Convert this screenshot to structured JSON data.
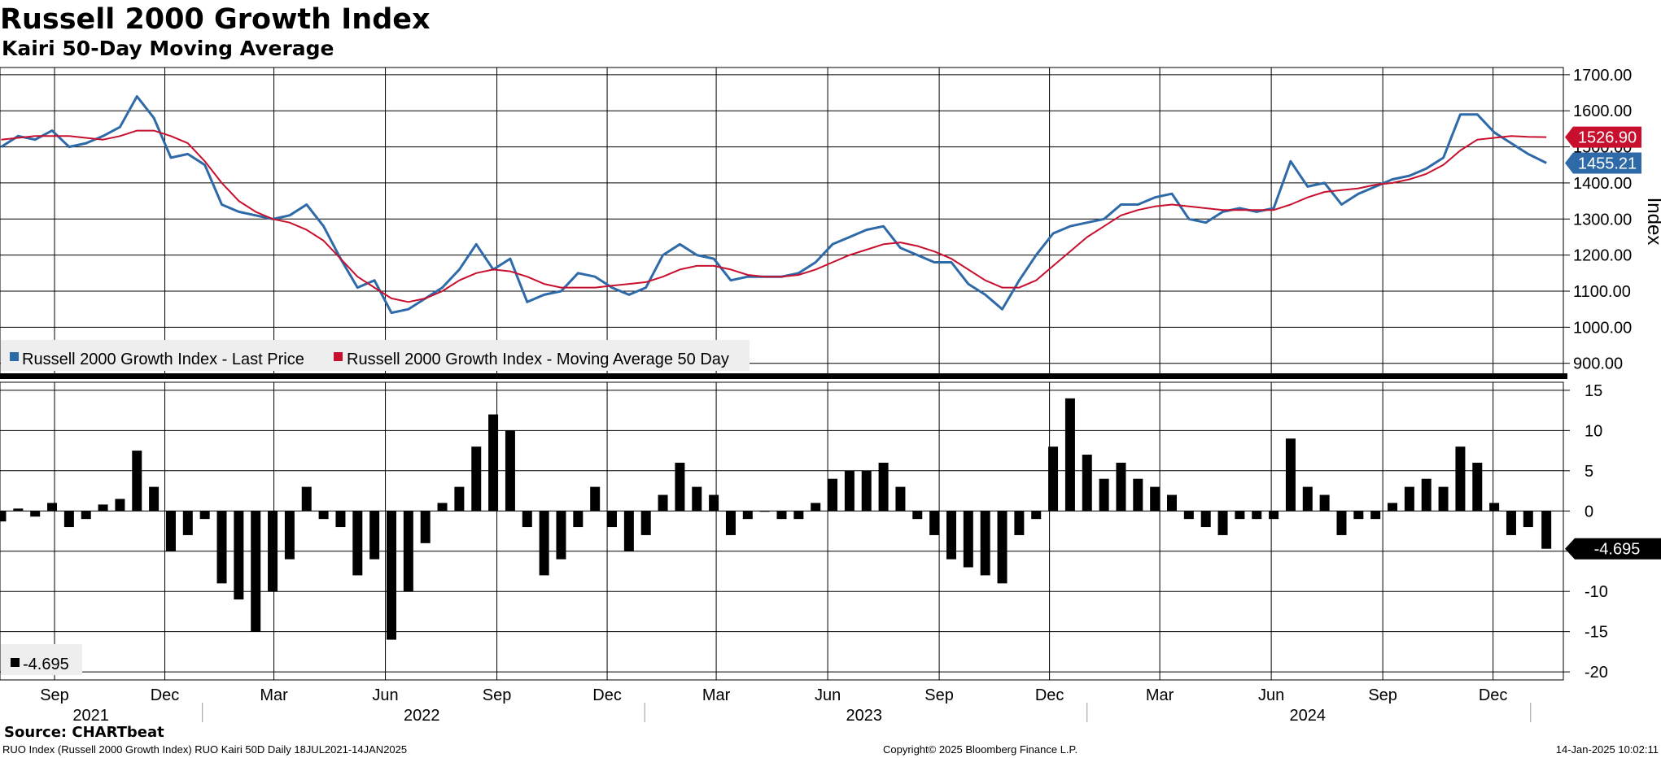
{
  "title": "Russell 2000 Growth Index",
  "subtitle": "Kairi 50-Day Moving Average",
  "source": "Source: CHARTbeat",
  "footer": {
    "left": "RUO Index (Russell 2000 Growth Index) RUO Kairi 50D  Daily 18JUL2021-14JAN2025",
    "center": "Copyright© 2025 Bloomberg Finance L.P.",
    "right": "14-Jan-2025 10:02:11"
  },
  "colors": {
    "price": "#2e6aa8",
    "ma": "#c8102e",
    "kairi": "#000000",
    "grid": "#000000"
  },
  "chart_data": [
    {
      "type": "line",
      "ylabel": "Index",
      "ylim": [
        870,
        1720
      ],
      "yticks": [
        "1700.00",
        "1600.00",
        "1500.00",
        "1400.00",
        "1300.00",
        "1200.00",
        "1100.00",
        "1000.00",
        "900.00"
      ],
      "yticks_values": [
        1700,
        1600,
        1500,
        1400,
        1300,
        1200,
        1100,
        1000,
        900
      ],
      "grid": true,
      "legend": [
        "Russell 2000 Growth Index - Last Price",
        "Russell 2000 Growth Index - Moving Average 50 Day"
      ],
      "legend_position": "bottom-left",
      "last_values": {
        "price": "1455.21",
        "ma": "1526.90"
      },
      "x": [
        "2021-07-19",
        "2021-08-02",
        "2021-08-16",
        "2021-08-30",
        "2021-09-13",
        "2021-09-27",
        "2021-10-11",
        "2021-10-25",
        "2021-11-08",
        "2021-11-22",
        "2021-12-06",
        "2021-12-20",
        "2022-01-03",
        "2022-01-17",
        "2022-01-31",
        "2022-02-14",
        "2022-02-28",
        "2022-03-14",
        "2022-03-28",
        "2022-04-11",
        "2022-04-25",
        "2022-05-09",
        "2022-05-23",
        "2022-06-06",
        "2022-06-20",
        "2022-07-04",
        "2022-07-18",
        "2022-08-01",
        "2022-08-15",
        "2022-08-29",
        "2022-09-12",
        "2022-09-26",
        "2022-10-10",
        "2022-10-24",
        "2022-11-07",
        "2022-11-21",
        "2022-12-05",
        "2022-12-19",
        "2023-01-02",
        "2023-01-16",
        "2023-01-30",
        "2023-02-13",
        "2023-02-27",
        "2023-03-13",
        "2023-03-27",
        "2023-04-10",
        "2023-04-24",
        "2023-05-08",
        "2023-05-22",
        "2023-06-05",
        "2023-06-19",
        "2023-07-03",
        "2023-07-17",
        "2023-07-31",
        "2023-08-14",
        "2023-08-28",
        "2023-09-11",
        "2023-09-25",
        "2023-10-09",
        "2023-10-23",
        "2023-11-06",
        "2023-11-20",
        "2023-12-04",
        "2023-12-18",
        "2024-01-01",
        "2024-01-15",
        "2024-01-29",
        "2024-02-12",
        "2024-02-26",
        "2024-03-11",
        "2024-03-25",
        "2024-04-08",
        "2024-04-22",
        "2024-05-06",
        "2024-05-20",
        "2024-06-03",
        "2024-06-17",
        "2024-07-01",
        "2024-07-15",
        "2024-07-29",
        "2024-08-12",
        "2024-08-26",
        "2024-09-09",
        "2024-09-23",
        "2024-10-07",
        "2024-10-21",
        "2024-11-04",
        "2024-11-18",
        "2024-12-02",
        "2024-12-16",
        "2024-12-30",
        "2025-01-14"
      ],
      "series": [
        {
          "name": "Russell 2000 Growth Index - Last Price",
          "values": [
            1500,
            1530,
            1520,
            1545,
            1500,
            1510,
            1530,
            1555,
            1640,
            1580,
            1470,
            1480,
            1450,
            1340,
            1320,
            1310,
            1300,
            1310,
            1340,
            1280,
            1190,
            1110,
            1130,
            1040,
            1050,
            1080,
            1110,
            1160,
            1230,
            1160,
            1190,
            1070,
            1090,
            1100,
            1150,
            1140,
            1110,
            1090,
            1110,
            1200,
            1230,
            1200,
            1190,
            1130,
            1140,
            1140,
            1140,
            1150,
            1180,
            1230,
            1250,
            1270,
            1280,
            1220,
            1200,
            1180,
            1180,
            1120,
            1090,
            1050,
            1130,
            1200,
            1260,
            1280,
            1290,
            1300,
            1340,
            1340,
            1360,
            1370,
            1300,
            1290,
            1320,
            1330,
            1320,
            1330,
            1460,
            1390,
            1400,
            1340,
            1370,
            1390,
            1410,
            1420,
            1440,
            1470,
            1590,
            1590,
            1540,
            1510,
            1480,
            1455.21
          ]
        },
        {
          "name": "Russell 2000 Growth Index - Moving Average 50 Day",
          "values": [
            1520,
            1525,
            1530,
            1530,
            1530,
            1525,
            1520,
            1530,
            1545,
            1545,
            1530,
            1510,
            1460,
            1400,
            1350,
            1320,
            1300,
            1290,
            1270,
            1240,
            1190,
            1140,
            1110,
            1080,
            1070,
            1080,
            1100,
            1130,
            1150,
            1160,
            1155,
            1140,
            1120,
            1110,
            1110,
            1110,
            1115,
            1120,
            1125,
            1140,
            1160,
            1170,
            1170,
            1160,
            1145,
            1140,
            1140,
            1145,
            1160,
            1180,
            1200,
            1215,
            1230,
            1235,
            1225,
            1210,
            1190,
            1160,
            1130,
            1110,
            1110,
            1130,
            1170,
            1210,
            1250,
            1280,
            1310,
            1325,
            1335,
            1340,
            1335,
            1330,
            1325,
            1325,
            1325,
            1325,
            1340,
            1360,
            1375,
            1380,
            1385,
            1395,
            1400,
            1410,
            1425,
            1450,
            1490,
            1520,
            1525,
            1530,
            1528,
            1526.9
          ]
        }
      ]
    },
    {
      "type": "bar",
      "name": "-4.695",
      "ylim": [
        -21,
        16
      ],
      "yticks": [
        "15",
        "10",
        "5",
        "0",
        "-5",
        "-10",
        "-15",
        "-20"
      ],
      "yticks_values": [
        15,
        10,
        5,
        0,
        -5,
        -10,
        -15,
        -20
      ],
      "grid": true,
      "legend": [
        "-4.695"
      ],
      "legend_position": "bottom-left",
      "last_value": "-4.695",
      "x": [
        "2021-07-19",
        "2021-08-02",
        "2021-08-16",
        "2021-08-30",
        "2021-09-13",
        "2021-09-27",
        "2021-10-11",
        "2021-10-25",
        "2021-11-08",
        "2021-11-22",
        "2021-12-06",
        "2021-12-20",
        "2022-01-03",
        "2022-01-17",
        "2022-01-31",
        "2022-02-14",
        "2022-02-28",
        "2022-03-14",
        "2022-03-28",
        "2022-04-11",
        "2022-04-25",
        "2022-05-09",
        "2022-05-23",
        "2022-06-06",
        "2022-06-20",
        "2022-07-04",
        "2022-07-18",
        "2022-08-01",
        "2022-08-15",
        "2022-08-29",
        "2022-09-12",
        "2022-09-26",
        "2022-10-10",
        "2022-10-24",
        "2022-11-07",
        "2022-11-21",
        "2022-12-05",
        "2022-12-19",
        "2023-01-02",
        "2023-01-16",
        "2023-01-30",
        "2023-02-13",
        "2023-02-27",
        "2023-03-13",
        "2023-03-27",
        "2023-04-10",
        "2023-04-24",
        "2023-05-08",
        "2023-05-22",
        "2023-06-05",
        "2023-06-19",
        "2023-07-03",
        "2023-07-17",
        "2023-07-31",
        "2023-08-14",
        "2023-08-28",
        "2023-09-11",
        "2023-09-25",
        "2023-10-09",
        "2023-10-23",
        "2023-11-06",
        "2023-11-20",
        "2023-12-04",
        "2023-12-18",
        "2024-01-01",
        "2024-01-15",
        "2024-01-29",
        "2024-02-12",
        "2024-02-26",
        "2024-03-11",
        "2024-03-25",
        "2024-04-08",
        "2024-04-22",
        "2024-05-06",
        "2024-05-20",
        "2024-06-03",
        "2024-06-17",
        "2024-07-01",
        "2024-07-15",
        "2024-07-29",
        "2024-08-12",
        "2024-08-26",
        "2024-09-09",
        "2024-09-23",
        "2024-10-07",
        "2024-10-21",
        "2024-11-04",
        "2024-11-18",
        "2024-12-02",
        "2024-12-16",
        "2024-12-30",
        "2025-01-14"
      ],
      "values": [
        -1.3,
        0.3,
        -0.7,
        1,
        -2,
        -1,
        0.8,
        1.5,
        7.5,
        3,
        -5,
        -3,
        -1,
        -9,
        -11,
        -15,
        -10,
        -6,
        3,
        -1,
        -2,
        -8,
        -6,
        -16,
        -10,
        -4,
        1,
        3,
        8,
        12,
        10,
        -2,
        -8,
        -6,
        -2,
        3,
        -2,
        -5,
        -3,
        2,
        6,
        3,
        2,
        -3,
        -1,
        0,
        -1,
        -1,
        1,
        4,
        5,
        5,
        6,
        3,
        -1,
        -3,
        -6,
        -7,
        -8,
        -9,
        -3,
        -1,
        8,
        14,
        7,
        4,
        6,
        4,
        3,
        2,
        -1,
        -2,
        -3,
        -1,
        -1,
        -1,
        9,
        3,
        2,
        -3,
        -1,
        -1,
        1,
        3,
        4,
        3,
        8,
        6,
        1,
        -3,
        -2,
        -4.695
      ]
    }
  ],
  "x_axis": {
    "months": [
      {
        "label": "Sep",
        "date": "2021-09-01"
      },
      {
        "label": "Dec",
        "date": "2021-12-01"
      },
      {
        "label": "Mar",
        "date": "2022-03-01"
      },
      {
        "label": "Jun",
        "date": "2022-06-01"
      },
      {
        "label": "Sep",
        "date": "2022-09-01"
      },
      {
        "label": "Dec",
        "date": "2022-12-01"
      },
      {
        "label": "Mar",
        "date": "2023-03-01"
      },
      {
        "label": "Jun",
        "date": "2023-06-01"
      },
      {
        "label": "Sep",
        "date": "2023-09-01"
      },
      {
        "label": "Dec",
        "date": "2023-12-01"
      },
      {
        "label": "Mar",
        "date": "2024-03-01"
      },
      {
        "label": "Jun",
        "date": "2024-06-01"
      },
      {
        "label": "Sep",
        "date": "2024-09-01"
      },
      {
        "label": "Dec",
        "date": "2024-12-01"
      }
    ],
    "years": [
      {
        "label": "2021",
        "date": "2021-10-01"
      },
      {
        "label": "2022",
        "date": "2022-07-01"
      },
      {
        "label": "2023",
        "date": "2023-07-01"
      },
      {
        "label": "2024",
        "date": "2024-07-01"
      }
    ],
    "year_dividers": [
      "2022-01-01",
      "2023-01-01",
      "2024-01-01",
      "2025-01-01"
    ],
    "range": [
      "2021-07-18",
      "2025-01-28"
    ]
  }
}
